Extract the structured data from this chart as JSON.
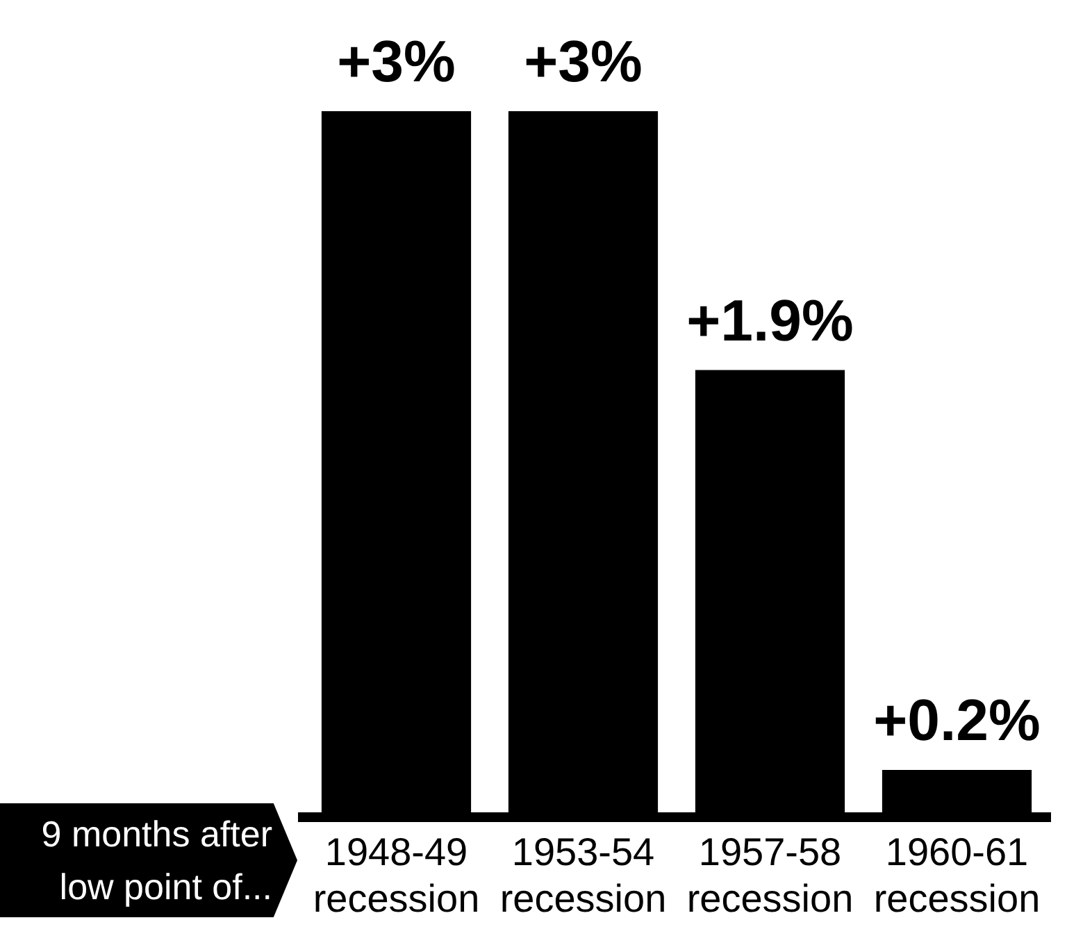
{
  "chart_data": {
    "type": "bar",
    "categories": [
      "1948-49\nrecession",
      "1953-54\nrecession",
      "1957-58\nrecession",
      "1960-61\nrecession"
    ],
    "values": [
      3,
      3,
      1.9,
      0.2
    ],
    "value_labels": [
      "+3%",
      "+3%",
      "+1.9%",
      "+0.2%"
    ],
    "color": "#000000",
    "annotations": [
      "9 months after\nlow point of..."
    ],
    "grid": false,
    "legend": false
  }
}
